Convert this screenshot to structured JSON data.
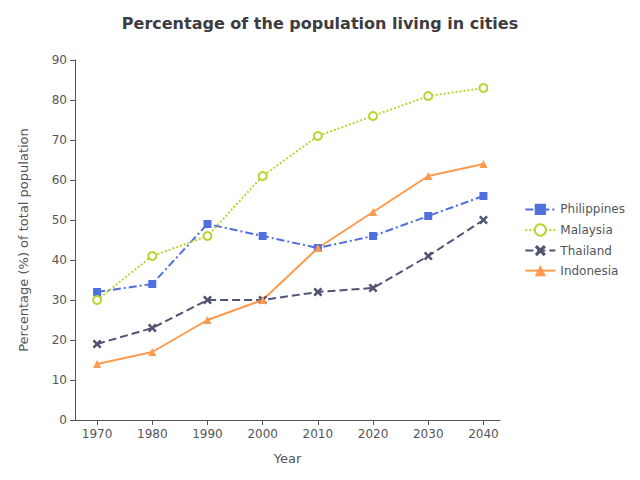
{
  "chart_data": {
    "type": "line",
    "title": "Percentage of the population living in cities",
    "xlabel": "Year",
    "ylabel": "Percentage (%) of total population",
    "x": [
      1970,
      1980,
      1990,
      2000,
      2010,
      2020,
      2030,
      2040
    ],
    "series": [
      {
        "name": "Philippines",
        "values": [
          32,
          34,
          49,
          46,
          43,
          46,
          51,
          56
        ],
        "marker": "square",
        "line_style": "dashdot"
      },
      {
        "name": "Malaysia",
        "values": [
          30,
          41,
          46,
          61,
          71,
          76,
          81,
          83
        ],
        "marker": "circle",
        "line_style": "dotted"
      },
      {
        "name": "Thailand",
        "values": [
          19,
          23,
          30,
          30,
          32,
          33,
          41,
          50
        ],
        "marker": "x",
        "line_style": "dashed"
      },
      {
        "name": "Indonesia",
        "values": [
          14,
          17,
          25,
          30,
          43,
          52,
          61,
          64
        ],
        "marker": "triangle",
        "line_style": "solid"
      }
    ],
    "xlim": [
      1966,
      2043
    ],
    "xticks": [
      1970,
      1980,
      1990,
      2000,
      2010,
      2020,
      2030,
      2040
    ],
    "ylim": [
      0,
      90
    ],
    "yticks": [
      0,
      10,
      20,
      30,
      40,
      50,
      60,
      70,
      80,
      90
    ],
    "grid": false,
    "legend": "right"
  }
}
